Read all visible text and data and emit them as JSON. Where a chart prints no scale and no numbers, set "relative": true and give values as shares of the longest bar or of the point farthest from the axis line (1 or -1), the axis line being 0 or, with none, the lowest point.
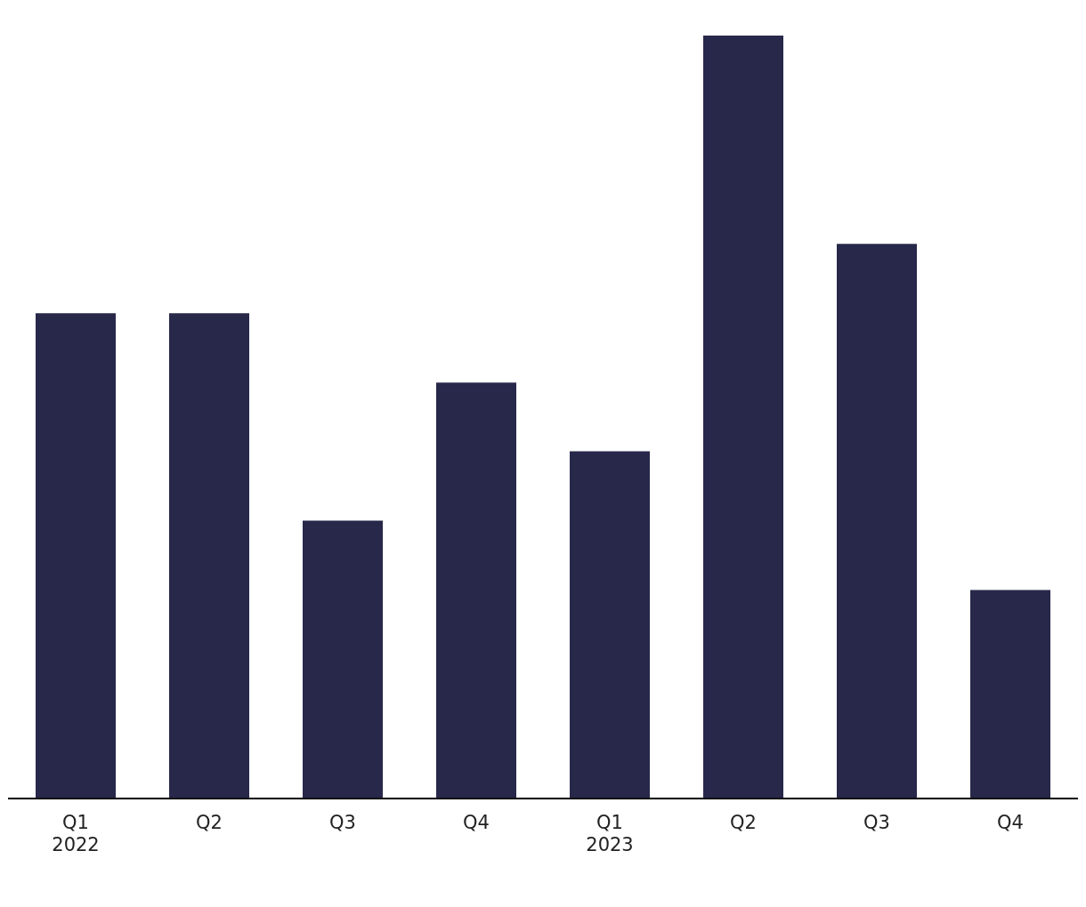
{
  "chart_data": {
    "type": "bar",
    "relative": true,
    "categories": [
      "Q1\n2022",
      "Q2",
      "Q3",
      "Q4",
      "Q1\n2023",
      "Q2",
      "Q3",
      "Q4"
    ],
    "values": [
      0.636,
      0.636,
      0.364,
      0.545,
      0.455,
      1,
      0.727,
      0.273
    ],
    "color": "#28284b"
  }
}
